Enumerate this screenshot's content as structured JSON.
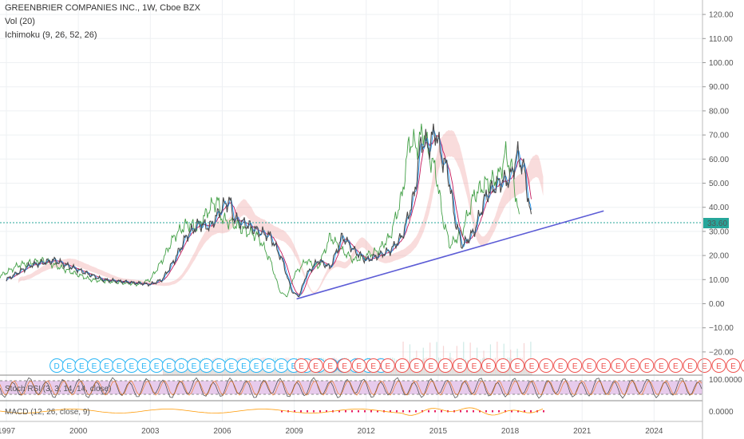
{
  "header": {
    "symbol_line": "GREENBRIER COMPANIES INC., 1W, Cboe BZX",
    "volume_indicator": "Vol (20)",
    "ichimoku_indicator": "Ichimoku (9, 26, 52, 26)"
  },
  "panes": {
    "stoch_rsi_label": "Stoch RSI (3, 3, 14, 14, close)",
    "stoch_rsi_level": "100.0000",
    "macd_label": "MACD (12, 26, close, 9)",
    "macd_level": "0.0000"
  },
  "colors": {
    "price": "#4a4a4a",
    "conversion_line": "#2196f3",
    "base_line": "#c2185b",
    "lagging_span": "#43a047",
    "cloud_bull": "#a5d6a7",
    "cloud_bear": "#ef9a9a",
    "trendline": "#5c5cd6",
    "last_price_badge": "#26a69a",
    "dividend_marker": "#29b6f6",
    "earnings_marker": "#ef5350",
    "stoch_band": "#e1bee7"
  },
  "chart_data": {
    "type": "line",
    "title": "GREENBRIER COMPANIES INC., 1W, Cboe BZX",
    "last_price": "33.60",
    "y_ticks": [
      "120.00",
      "110.00",
      "100.00",
      "90.00",
      "80.00",
      "70.00",
      "60.00",
      "50.00",
      "40.00",
      "30.00",
      "20.00",
      "10.00",
      "0.00",
      "−10.00",
      "−20.00"
    ],
    "x_ticks": [
      "1997",
      "2000",
      "2003",
      "2006",
      "2009",
      "2012",
      "2015",
      "2018",
      "2021",
      "2024"
    ],
    "x": [
      1997.0,
      1998.0,
      1999.0,
      2000.0,
      2001.0,
      2002.0,
      2003.0,
      2003.5,
      2004.0,
      2004.5,
      2005.0,
      2005.5,
      2006.0,
      2006.3,
      2006.5,
      2007.0,
      2007.5,
      2008.0,
      2008.5,
      2008.9,
      2009.2,
      2009.5,
      2010.0,
      2010.5,
      2011.0,
      2011.5,
      2012.0,
      2012.5,
      2013.0,
      2013.5,
      2014.0,
      2014.3,
      2014.6,
      2014.9,
      2015.1,
      2015.4,
      2015.7,
      2016.0,
      2016.5,
      2017.0,
      2017.5,
      2018.0,
      2018.3,
      2018.6,
      2018.9
    ],
    "y": [
      10,
      16,
      18,
      14,
      10,
      9,
      8,
      10,
      18,
      28,
      33,
      32,
      40,
      43,
      35,
      33,
      30,
      28,
      18,
      5,
      3,
      12,
      18,
      15,
      28,
      22,
      18,
      20,
      22,
      28,
      45,
      68,
      65,
      72,
      62,
      55,
      35,
      24,
      30,
      45,
      50,
      52,
      62,
      55,
      33
    ],
    "markers": {
      "dividend": [
        "D",
        "E",
        "E",
        "E",
        "E",
        "E",
        "E",
        "E",
        "E",
        "E",
        "D",
        "E",
        "E",
        "E",
        "E",
        "E",
        "E",
        "E",
        "E",
        "E",
        "E",
        "E",
        "E",
        "E",
        "E",
        "D",
        "E"
      ],
      "earnings": [
        "E",
        "E",
        "E",
        "E",
        "E",
        "E",
        "E",
        "E",
        "E",
        "E",
        "E",
        "E",
        "E",
        "E",
        "E",
        "E",
        "E",
        "E",
        "E",
        "E",
        "E",
        "E",
        "E",
        "E",
        "E",
        "E",
        "E",
        "E",
        "E",
        "E",
        "E",
        "E",
        "E",
        "E",
        "E",
        "E"
      ]
    },
    "grid": true
  }
}
